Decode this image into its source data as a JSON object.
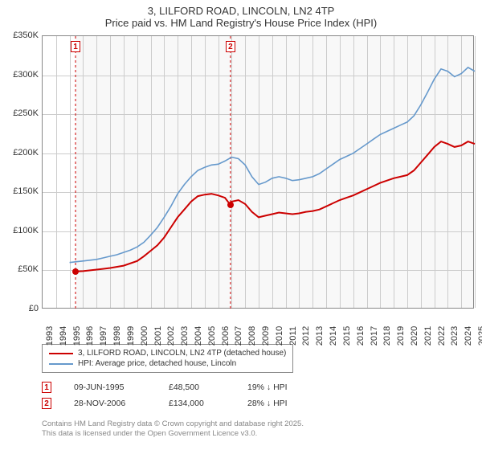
{
  "title": {
    "line1": "3, LILFORD ROAD, LINCOLN, LN2 4TP",
    "line2": "Price paid vs. HM Land Registry's House Price Index (HPI)"
  },
  "chart": {
    "type": "line",
    "background_color": "#ffffff",
    "plot_bg_color": "#f8f8f8",
    "grid_color": "#cccccc",
    "border_color": "#888888",
    "x": {
      "min": 1993,
      "max": 2025,
      "ticks": [
        1993,
        1994,
        1995,
        1996,
        1997,
        1998,
        1999,
        2000,
        2001,
        2002,
        2003,
        2004,
        2005,
        2006,
        2007,
        2008,
        2009,
        2010,
        2011,
        2012,
        2013,
        2014,
        2015,
        2016,
        2017,
        2018,
        2019,
        2020,
        2021,
        2022,
        2023,
        2024,
        2025
      ]
    },
    "y": {
      "min": 0,
      "max": 350000,
      "ticks": [
        0,
        50000,
        100000,
        150000,
        200000,
        250000,
        300000,
        350000
      ],
      "tick_labels": [
        "£0",
        "£50K",
        "£100K",
        "£150K",
        "£200K",
        "£250K",
        "£300K",
        "£350K"
      ]
    },
    "plot_bg_start_year": 1995.44,
    "series": [
      {
        "name": "price_paid",
        "color": "#cc0000",
        "width": 2,
        "legend": "3, LILFORD ROAD, LINCOLN, LN2 4TP (detached house)",
        "points": [
          [
            1995.44,
            48500
          ],
          [
            1996,
            49000
          ],
          [
            1997,
            51000
          ],
          [
            1998,
            53000
          ],
          [
            1999,
            56000
          ],
          [
            2000,
            62000
          ],
          [
            2000.5,
            68000
          ],
          [
            2001,
            75000
          ],
          [
            2001.5,
            82000
          ],
          [
            2002,
            92000
          ],
          [
            2002.5,
            105000
          ],
          [
            2003,
            118000
          ],
          [
            2003.5,
            128000
          ],
          [
            2004,
            138000
          ],
          [
            2004.5,
            145000
          ],
          [
            2005,
            147000
          ],
          [
            2005.5,
            148000
          ],
          [
            2006,
            146000
          ],
          [
            2006.5,
            143000
          ],
          [
            2006.9,
            134000
          ],
          [
            2007,
            138000
          ],
          [
            2007.5,
            140000
          ],
          [
            2008,
            135000
          ],
          [
            2008.5,
            125000
          ],
          [
            2009,
            118000
          ],
          [
            2009.5,
            120000
          ],
          [
            2010,
            122000
          ],
          [
            2010.5,
            124000
          ],
          [
            2011,
            123000
          ],
          [
            2011.5,
            122000
          ],
          [
            2012,
            123000
          ],
          [
            2012.5,
            125000
          ],
          [
            2013,
            126000
          ],
          [
            2013.5,
            128000
          ],
          [
            2014,
            132000
          ],
          [
            2014.5,
            136000
          ],
          [
            2015,
            140000
          ],
          [
            2015.5,
            143000
          ],
          [
            2016,
            146000
          ],
          [
            2016.5,
            150000
          ],
          [
            2017,
            154000
          ],
          [
            2017.5,
            158000
          ],
          [
            2018,
            162000
          ],
          [
            2018.5,
            165000
          ],
          [
            2019,
            168000
          ],
          [
            2019.5,
            170000
          ],
          [
            2020,
            172000
          ],
          [
            2020.5,
            178000
          ],
          [
            2021,
            188000
          ],
          [
            2021.5,
            198000
          ],
          [
            2022,
            208000
          ],
          [
            2022.5,
            215000
          ],
          [
            2023,
            212000
          ],
          [
            2023.5,
            208000
          ],
          [
            2024,
            210000
          ],
          [
            2024.5,
            215000
          ],
          [
            2025,
            212000
          ]
        ]
      },
      {
        "name": "hpi",
        "color": "#6699cc",
        "width": 1.6,
        "legend": "HPI: Average price, detached house, Lincoln",
        "points": [
          [
            1995,
            60000
          ],
          [
            1995.5,
            61000
          ],
          [
            1996,
            62000
          ],
          [
            1996.5,
            63000
          ],
          [
            1997,
            64000
          ],
          [
            1997.5,
            66000
          ],
          [
            1998,
            68000
          ],
          [
            1998.5,
            70000
          ],
          [
            1999,
            73000
          ],
          [
            1999.5,
            76000
          ],
          [
            2000,
            80000
          ],
          [
            2000.5,
            86000
          ],
          [
            2001,
            95000
          ],
          [
            2001.5,
            105000
          ],
          [
            2002,
            118000
          ],
          [
            2002.5,
            132000
          ],
          [
            2003,
            148000
          ],
          [
            2003.5,
            160000
          ],
          [
            2004,
            170000
          ],
          [
            2004.5,
            178000
          ],
          [
            2005,
            182000
          ],
          [
            2005.5,
            185000
          ],
          [
            2006,
            186000
          ],
          [
            2006.5,
            190000
          ],
          [
            2007,
            195000
          ],
          [
            2007.5,
            193000
          ],
          [
            2008,
            185000
          ],
          [
            2008.5,
            170000
          ],
          [
            2009,
            160000
          ],
          [
            2009.5,
            163000
          ],
          [
            2010,
            168000
          ],
          [
            2010.5,
            170000
          ],
          [
            2011,
            168000
          ],
          [
            2011.5,
            165000
          ],
          [
            2012,
            166000
          ],
          [
            2012.5,
            168000
          ],
          [
            2013,
            170000
          ],
          [
            2013.5,
            174000
          ],
          [
            2014,
            180000
          ],
          [
            2014.5,
            186000
          ],
          [
            2015,
            192000
          ],
          [
            2015.5,
            196000
          ],
          [
            2016,
            200000
          ],
          [
            2016.5,
            206000
          ],
          [
            2017,
            212000
          ],
          [
            2017.5,
            218000
          ],
          [
            2018,
            224000
          ],
          [
            2018.5,
            228000
          ],
          [
            2019,
            232000
          ],
          [
            2019.5,
            236000
          ],
          [
            2020,
            240000
          ],
          [
            2020.5,
            248000
          ],
          [
            2021,
            262000
          ],
          [
            2021.5,
            278000
          ],
          [
            2022,
            295000
          ],
          [
            2022.5,
            308000
          ],
          [
            2023,
            305000
          ],
          [
            2023.5,
            298000
          ],
          [
            2024,
            302000
          ],
          [
            2024.5,
            310000
          ],
          [
            2025,
            305000
          ]
        ]
      }
    ],
    "events": [
      {
        "n": "1",
        "year": 1995.44,
        "date": "09-JUN-1995",
        "price_val": 48500,
        "price": "£48,500",
        "pct": "19% ↓ HPI"
      },
      {
        "n": "2",
        "year": 2006.91,
        "date": "28-NOV-2006",
        "price_val": 134000,
        "price": "£134,000",
        "pct": "28% ↓ HPI"
      }
    ],
    "event_line_color": "#cc0000",
    "event_line_dash": "3,3"
  },
  "footnote": {
    "line1": "Contains HM Land Registry data © Crown copyright and database right 2025.",
    "line2": "This data is licensed under the Open Government Licence v3.0."
  }
}
